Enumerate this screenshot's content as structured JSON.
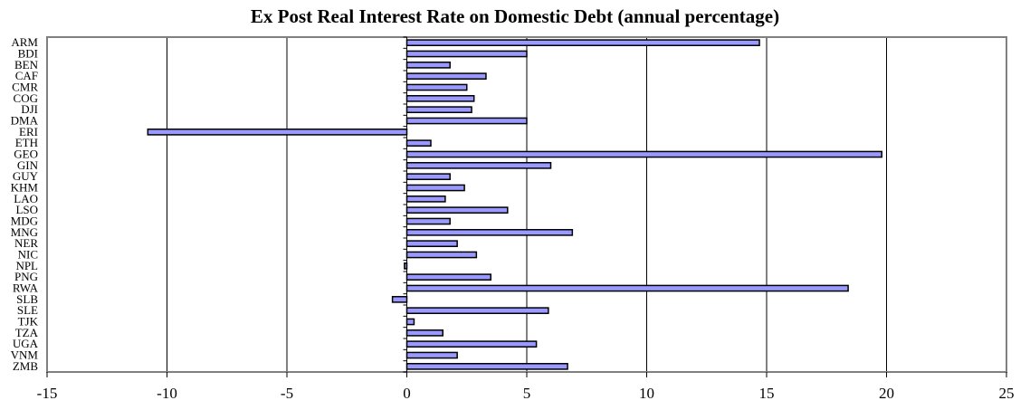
{
  "chart_data": {
    "type": "bar",
    "orientation": "horizontal",
    "title": "Ex Post Real Interest Rate on Domestic Debt (annual percentage)",
    "xlabel": "",
    "ylabel": "",
    "xlim": [
      -15,
      25
    ],
    "x_ticks": [
      -15,
      -10,
      -5,
      0,
      5,
      10,
      15,
      20,
      25
    ],
    "grid": "vertical",
    "legend": "none",
    "bar_color": "#9999ff",
    "categories": [
      "ARM",
      "BDI",
      "BEN",
      "CAF",
      "CMR",
      "COG",
      "DJI",
      "DMA",
      "ERI",
      "ETH",
      "GEO",
      "GIN",
      "GUY",
      "KHM",
      "LAO",
      "LSO",
      "MDG",
      "MNG",
      "NER",
      "NIC",
      "NPL",
      "PNG",
      "RWA",
      "SLB",
      "SLE",
      "TJK",
      "TZA",
      "UGA",
      "VNM",
      "ZMB"
    ],
    "values": [
      14.7,
      5.0,
      1.8,
      3.3,
      2.5,
      2.8,
      2.7,
      5.0,
      -10.8,
      1.0,
      19.8,
      6.0,
      1.8,
      2.4,
      1.6,
      4.2,
      1.8,
      6.9,
      2.1,
      2.9,
      -0.1,
      3.5,
      18.4,
      -0.6,
      5.9,
      0.3,
      1.5,
      5.4,
      2.1,
      6.7
    ]
  }
}
